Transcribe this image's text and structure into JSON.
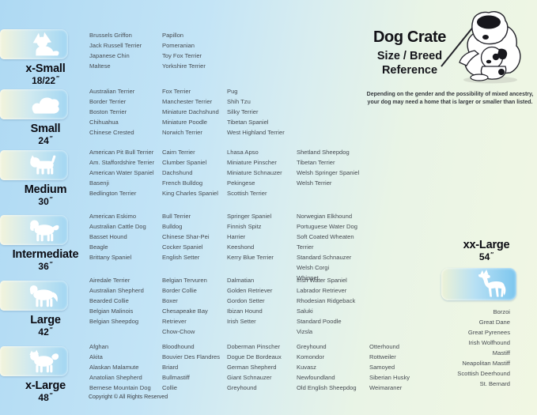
{
  "header": {
    "title": "Dog Crate",
    "subtitle_line1": "Size / Breed",
    "subtitle_line2": "Reference",
    "disclaimer_line1": "Depending on the gender and the possibility of mixed ancestry,",
    "disclaimer_line2": "your dog may need a home that is larger or smaller than listed.",
    "illustration": "sheepdog-teacher-with-puppy-cartoon"
  },
  "inch_mark": "″",
  "colors": {
    "background_blue": "#aed9f3",
    "background_green": "#f1f7e3",
    "tile_cream": "#f3f4db",
    "tile_blue": "#a2d6f2",
    "breed_text": "#474c52",
    "silhouette": "#ffffff"
  },
  "sizes": [
    {
      "label": "x-Small",
      "dimension": "18/22",
      "icon": "papillon-silhouette",
      "columns": [
        [
          "Brussels Griffon",
          "Jack Russell Terrier",
          "Japanese Chin",
          "Maltese"
        ],
        [
          "Papillon",
          "Pomeranian",
          "Toy Fox Terrier",
          "Yorkshire Terrier"
        ]
      ]
    },
    {
      "label": "Small",
      "dimension": "24",
      "icon": "lying-toy-dog-silhouette",
      "columns": [
        [
          "Australian Terrier",
          "Border Terrier",
          "Boston Terrier",
          "Chihuahua",
          "Chinese Crested"
        ],
        [
          "Fox Terrier",
          "Manchester Terrier",
          "Miniature Dachshund",
          "Miniature Poodle",
          "Norwich Terrier"
        ],
        [
          "Pug",
          "Shih Tzu",
          "Silky Terrier",
          "Tibetan Spaniel",
          "West Highland Terrier"
        ]
      ]
    },
    {
      "label": "Medium",
      "dimension": "30",
      "icon": "terrier-silhouette",
      "columns": [
        [
          "American Pit Bull Terrier",
          "Am. Staffordshire Terrier",
          "American Water Spaniel",
          "Basenji",
          "Bedlington Terrier"
        ],
        [
          "Cairn Terrier",
          "Clumber Spaniel",
          "Dachshund",
          "French Bulldog",
          "King Charles Spaniel"
        ],
        [
          "Lhasa Apso",
          "Miniature Pinscher",
          "Miniature Schnauzer",
          "Pekingese",
          "Scottish Terrier"
        ],
        [
          "Shetland Sheepdog",
          "Tibetan Terrier",
          "Welsh Springer Spaniel",
          "Welsh Terrier"
        ]
      ]
    },
    {
      "label": "Intermediate",
      "dimension": "36",
      "icon": "spaniel-silhouette",
      "columns": [
        [
          "American Eskimo",
          "Australian Cattle Dog",
          "Basset Hound",
          "Beagle",
          "Brittany Spaniel"
        ],
        [
          "Bull Terrier",
          "Bulldog",
          "Chinese Shar-Pei",
          "Cocker Spaniel",
          "English Setter"
        ],
        [
          "Springer Spaniel",
          "Finnish Spitz",
          "Harrier",
          "Keeshond",
          "Kerry Blue Terrier"
        ],
        [
          "Norwegian Elkhound",
          "Portuguese Water Dog",
          "Soft Coated Wheaten Terrier",
          "Standard Schnauzer",
          "Welsh Corgi",
          "Whippet"
        ]
      ]
    },
    {
      "label": "Large",
      "dimension": "42",
      "icon": "retriever-silhouette",
      "columns": [
        [
          "Airedale Terrier",
          "Australian Shepherd",
          "Bearded Collie",
          "Belgian Malinois",
          "Belgian Sheepdog"
        ],
        [
          "Belgian Tervuren",
          "Border Collie",
          "Boxer",
          "Chesapeake Bay\nRetriever",
          "Chow-Chow"
        ],
        [
          "Dalmatian",
          "Golden Retriever",
          "Gordon Setter",
          "Ibizan Hound",
          "Irish Setter"
        ],
        [
          "Irish Water Spaniel",
          "Labrador Retriever",
          "Rhodesian Ridgeback",
          "Saluki",
          "Standard Poodle",
          "Vizsla"
        ]
      ]
    },
    {
      "label": "x-Large",
      "dimension": "48",
      "icon": "akita-silhouette",
      "columns": [
        [
          "Afghan",
          "Akita",
          "Alaskan Malamute",
          "Anatolian Shepherd",
          "Bernese Mountain Dog"
        ],
        [
          "Bloodhound",
          "Bouvier Des Flandres",
          "Briard",
          "Bullmastiff",
          "Collie"
        ],
        [
          "Doberman Pinscher",
          "Dogue De Bordeaux",
          "German Shepherd",
          "Giant Schnauzer",
          "Greyhound"
        ],
        [
          "Greyhound",
          "Komondor",
          "Kuvasz",
          "Newfoundland",
          "Old English Sheepdog"
        ],
        [
          "Otterhound",
          "Rottweiler",
          "Samoyed",
          "Siberian Husky",
          "Weimaraner"
        ]
      ]
    }
  ],
  "xx_large": {
    "label": "xx-Large",
    "dimension": "54",
    "icon": "great-dane-silhouette",
    "breeds": [
      "Borzoi",
      "Great Dane",
      "Great Pyrenees",
      "Irish Wolfhound",
      "Mastiff",
      "Neapolitan Mastiff",
      "Scottish Deerhound",
      "St. Bernard"
    ]
  },
  "footer": {
    "copyright": "Copyright © All Rights Reserved"
  }
}
